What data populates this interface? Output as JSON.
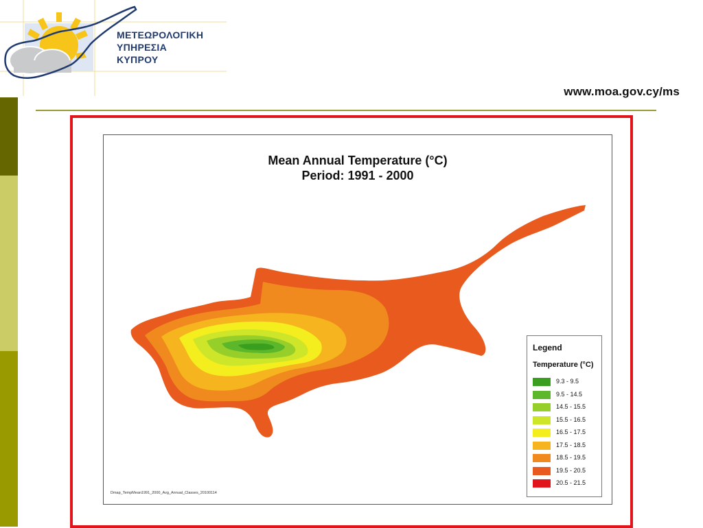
{
  "header": {
    "logo_lines": [
      "ΜΕΤΕΩΡΟΛΟΓΙΚΗ",
      "ΥΠΗΡΕΣΙΑ",
      "ΚΥΠΡΟΥ"
    ],
    "url": "www.moa.gov.cy/ms"
  },
  "map": {
    "title_line1": "Mean Annual Temperature (°C)",
    "title_line2": "Period:   1991 - 2000",
    "file_label": "Dmap_TempMean1991_2000_Avg_Annual_Classes_20100114",
    "legend": {
      "title": "Legend",
      "subtitle": "Temperature (°C)",
      "items": [
        {
          "label": "9.3 -  9.5",
          "color": "#3a9e1e"
        },
        {
          "label": "9.5 - 14.5",
          "color": "#5cb82a"
        },
        {
          "label": "14.5 - 15.5",
          "color": "#96cf2a"
        },
        {
          "label": "15.5 - 16.5",
          "color": "#cde62a"
        },
        {
          "label": "16.5 - 17.5",
          "color": "#f5ee1e"
        },
        {
          "label": "17.5 - 18.5",
          "color": "#f6b41e"
        },
        {
          "label": "18.5 - 19.5",
          "color": "#f08a1e"
        },
        {
          "label": "19.5 - 20.5",
          "color": "#e85a1e"
        },
        {
          "label": "20.5 - 21.5",
          "color": "#e2141b"
        }
      ]
    }
  }
}
